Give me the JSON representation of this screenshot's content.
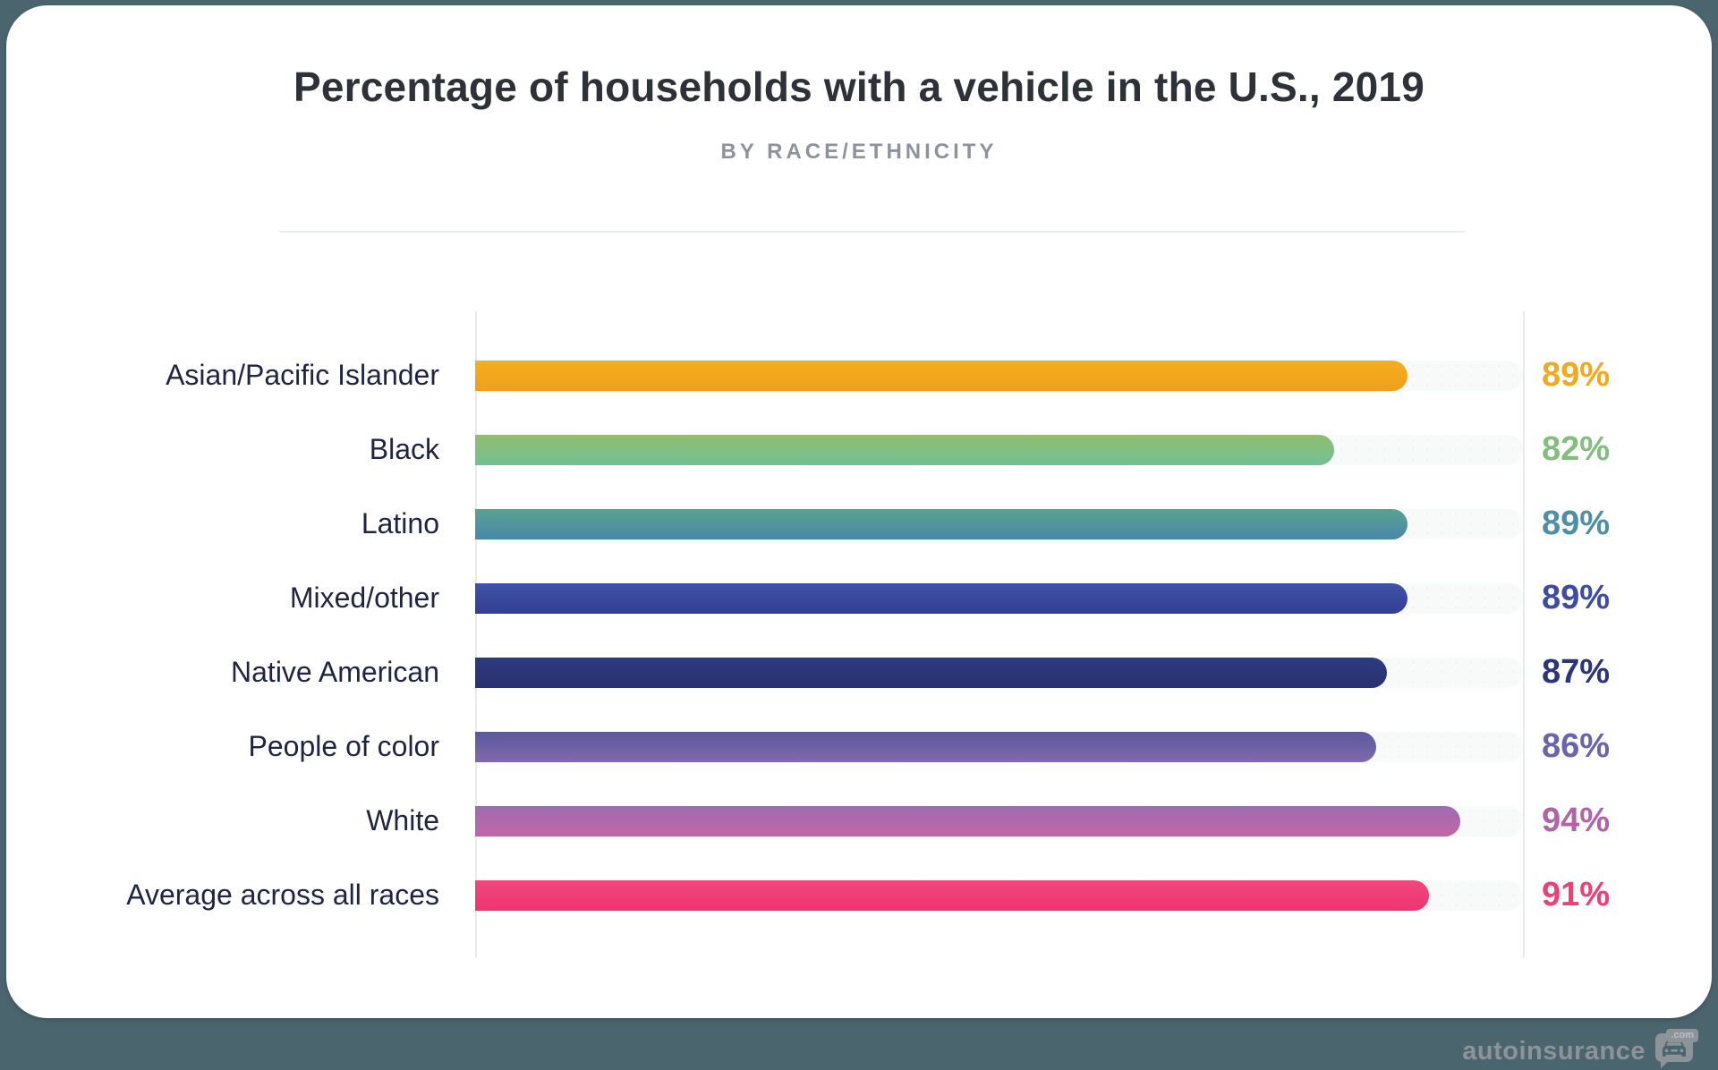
{
  "page": {
    "background_color": "#4b656e",
    "card_color": "#ffffff"
  },
  "header": {
    "title": "Percentage of households with a vehicle in the U.S., 2019",
    "subtitle": "BY RACE/ETHNICITY"
  },
  "chart_data": {
    "type": "bar",
    "orientation": "horizontal",
    "title": "Percentage of households with a vehicle in the U.S., 2019",
    "subtitle": "BY RACE/ETHNICITY",
    "unit": "%",
    "xlim": [
      0,
      100
    ],
    "grid": false,
    "legend": false,
    "categories": [
      "Asian/Pacific Islander",
      "Black",
      "Latino",
      "Mixed/other",
      "Native American",
      "People of color",
      "White",
      "Average across all races"
    ],
    "values": [
      89,
      82,
      89,
      89,
      87,
      86,
      94,
      91
    ],
    "value_labels": [
      "89%",
      "82%",
      "89%",
      "89%",
      "87%",
      "86%",
      "94%",
      "91%"
    ],
    "bar_gradients": [
      [
        "#f6ae1c",
        "#eea01b"
      ],
      [
        "#93bd6f",
        "#71c194"
      ],
      [
        "#58a38f",
        "#4a87ac"
      ],
      [
        "#4153a8",
        "#333f92"
      ],
      [
        "#2e3b80",
        "#283170"
      ],
      [
        "#5b58a0",
        "#8169ab"
      ],
      [
        "#9c6db1",
        "#c167a6"
      ],
      [
        "#f2477e",
        "#ee3571"
      ]
    ],
    "value_label_colors": [
      "#f2a81f",
      "#85bd80",
      "#4e8fa6",
      "#3d4ba0",
      "#2b3577",
      "#6a64a8",
      "#b163a8",
      "#f23e77"
    ],
    "track_color": "#f8f9f9",
    "label_color": "#1f2540"
  },
  "watermark": {
    "brand": "autoinsurance",
    "tld_badge": ".com",
    "icon": "car-speech-bubble-icon",
    "color": "#8d9499"
  }
}
